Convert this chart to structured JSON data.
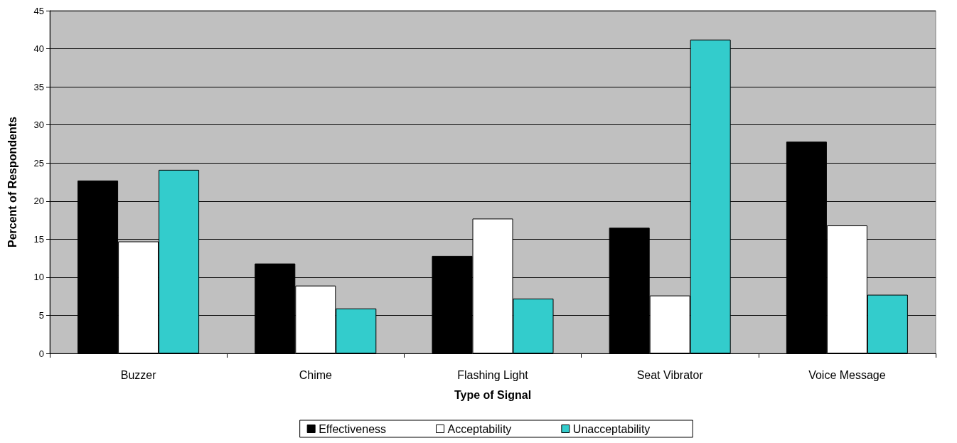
{
  "chart_data": {
    "type": "bar",
    "xlabel": "Type of Signal",
    "ylabel": "Percent of Respondents",
    "categories": [
      "Buzzer",
      "Chime",
      "Flashing Light",
      "Seat Vibrator",
      "Voice Message"
    ],
    "series": [
      {
        "name": "Effectiveness",
        "color": "#000000",
        "values": [
          22.7,
          11.8,
          12.8,
          16.5,
          27.8
        ]
      },
      {
        "name": "Acceptability",
        "color": "#ffffff",
        "values": [
          14.7,
          8.9,
          17.7,
          7.6,
          16.8
        ]
      },
      {
        "name": "Unacceptability",
        "color": "#33cccc",
        "values": [
          24.1,
          5.9,
          7.2,
          41.2,
          7.7
        ]
      }
    ],
    "ylim": [
      0,
      45
    ],
    "yticks": [
      0,
      5,
      10,
      15,
      20,
      25,
      30,
      35,
      40,
      45
    ],
    "grid": "y",
    "legend": "bottom"
  }
}
